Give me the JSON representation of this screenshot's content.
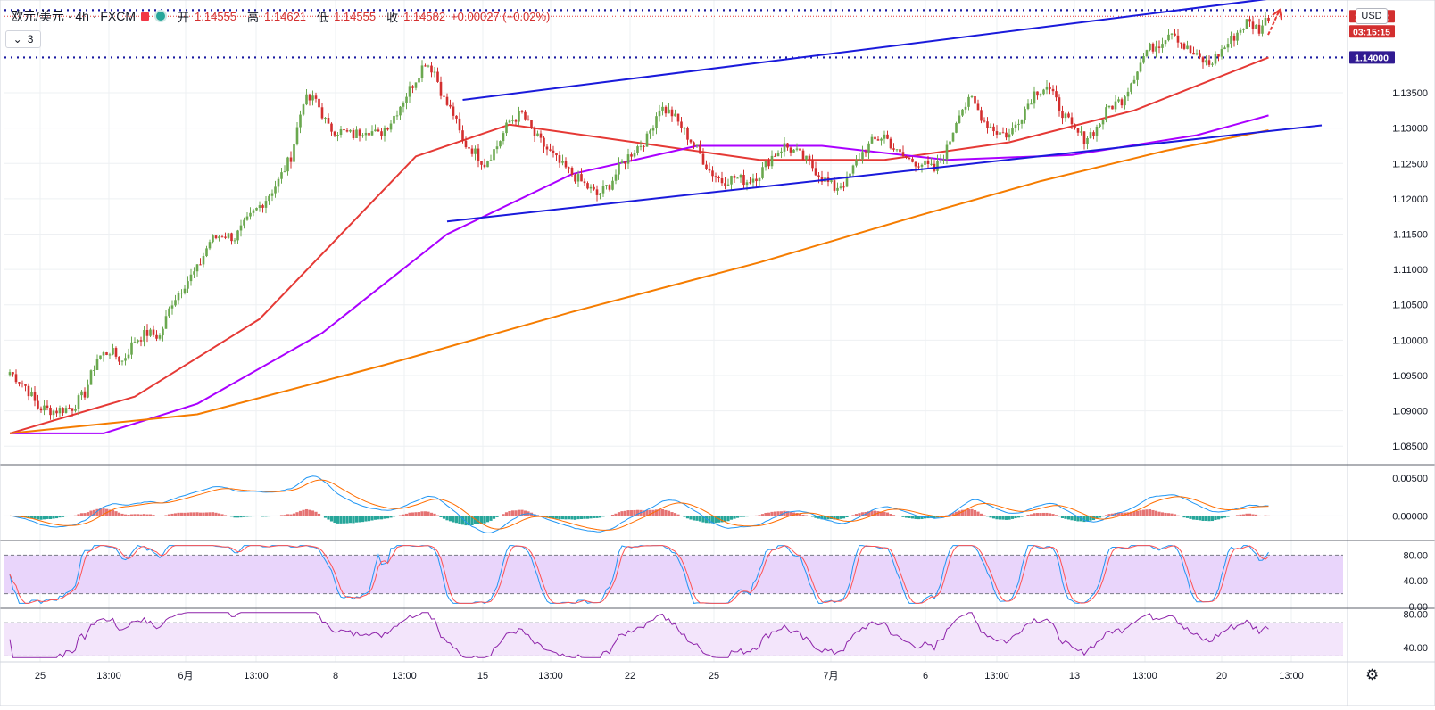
{
  "legend": {
    "symbol": "欧元/美元 · 4h · FXCM",
    "open_label": "开",
    "open": "1.14555",
    "high_label": "高",
    "high": "1.14621",
    "low_label": "低",
    "low": "1.14555",
    "close_label": "收",
    "close": "1.14582",
    "change": "+0.00027 (+0.02%)",
    "collapse_count": "3"
  },
  "currency_button": "USD",
  "price_scale": {
    "ticks": [
      "1.13500",
      "1.13000",
      "1.12500",
      "1.12000",
      "1.11500",
      "1.11000",
      "1.10500",
      "1.10000",
      "1.09500",
      "1.09000",
      "1.08500"
    ],
    "badges": [
      {
        "label": "1.14582",
        "color": "#d32f2f"
      },
      {
        "label": "03:15:15",
        "color": "#d32f2f"
      },
      {
        "label": "1.14000",
        "color": "#311b92"
      }
    ]
  },
  "macd_scale": [
    "0.00500",
    "0.00000"
  ],
  "stoch_scale": [
    "80.00",
    "40.00",
    "0.00"
  ],
  "rsi_scale": [
    "80.00",
    "40.00"
  ],
  "time_axis": [
    "25",
    "13:00",
    "6月",
    "13:00",
    "8",
    "13:00",
    "15",
    "13:00",
    "22",
    "25",
    "7月",
    "6",
    "13:00",
    "13",
    "13:00",
    "20",
    "13:00"
  ],
  "colors": {
    "up": "#6aa84f",
    "down": "#d32f2f",
    "ma_fast": "#e53935",
    "ma_mid": "#aa00ff",
    "ma_slow": "#f57c00",
    "trend": "#1a1adb",
    "level": "#1a1aa0"
  },
  "chart_data": {
    "type": "candlestick",
    "symbol": "欧元/美元",
    "interval": "4h",
    "ylim": [
      1.0825,
      1.1475
    ],
    "key_levels": [
      1.1467,
      1.14
    ],
    "current_price": 1.14582,
    "close_path": [
      [
        0,
        1.0955
      ],
      [
        5,
        1.0935
      ],
      [
        9,
        1.0905
      ],
      [
        14,
        1.09
      ],
      [
        20,
        1.0905
      ],
      [
        24,
        1.0925
      ],
      [
        28,
        1.0975
      ],
      [
        32,
        1.0985
      ],
      [
        36,
        1.097
      ],
      [
        40,
        1.1
      ],
      [
        44,
        1.101
      ],
      [
        48,
        1.1005
      ],
      [
        52,
        1.1055
      ],
      [
        56,
        1.108
      ],
      [
        60,
        1.11
      ],
      [
        64,
        1.114
      ],
      [
        68,
        1.115
      ],
      [
        72,
        1.1145
      ],
      [
        78,
        1.118
      ],
      [
        82,
        1.12
      ],
      [
        86,
        1.1225
      ],
      [
        90,
        1.126
      ],
      [
        94,
        1.134
      ],
      [
        98,
        1.134
      ],
      [
        102,
        1.13
      ],
      [
        106,
        1.1295
      ],
      [
        110,
        1.129
      ],
      [
        114,
        1.13
      ],
      [
        118,
        1.129
      ],
      [
        122,
        1.131
      ],
      [
        126,
        1.134
      ],
      [
        130,
        1.137
      ],
      [
        133,
        1.1395
      ],
      [
        136,
        1.138
      ],
      [
        139,
        1.134
      ],
      [
        142,
        1.132
      ],
      [
        145,
        1.128
      ],
      [
        148,
        1.127
      ],
      [
        152,
        1.125
      ],
      [
        156,
        1.1275
      ],
      [
        160,
        1.131
      ],
      [
        164,
        1.132
      ],
      [
        168,
        1.129
      ],
      [
        172,
        1.127
      ],
      [
        176,
        1.125
      ],
      [
        180,
        1.1235
      ],
      [
        184,
        1.122
      ],
      [
        188,
        1.1205
      ],
      [
        192,
        1.122
      ],
      [
        196,
        1.125
      ],
      [
        200,
        1.127
      ],
      [
        204,
        1.1285
      ],
      [
        208,
        1.133
      ],
      [
        212,
        1.132
      ],
      [
        216,
        1.1295
      ],
      [
        220,
        1.127
      ],
      [
        224,
        1.124
      ],
      [
        228,
        1.1225
      ],
      [
        232,
        1.123
      ],
      [
        236,
        1.1225
      ],
      [
        240,
        1.1235
      ],
      [
        244,
        1.126
      ],
      [
        248,
        1.1275
      ],
      [
        252,
        1.1265
      ],
      [
        256,
        1.125
      ],
      [
        260,
        1.123
      ],
      [
        264,
        1.1215
      ],
      [
        268,
        1.1225
      ],
      [
        272,
        1.126
      ],
      [
        276,
        1.128
      ],
      [
        280,
        1.129
      ],
      [
        284,
        1.1265
      ],
      [
        288,
        1.1255
      ],
      [
        292,
        1.125
      ],
      [
        296,
        1.124
      ],
      [
        300,
        1.127
      ],
      [
        304,
        1.1325
      ],
      [
        308,
        1.134
      ],
      [
        312,
        1.131
      ],
      [
        316,
        1.1295
      ],
      [
        320,
        1.129
      ],
      [
        324,
        1.132
      ],
      [
        328,
        1.135
      ],
      [
        332,
        1.136
      ],
      [
        336,
        1.133
      ],
      [
        340,
        1.13
      ],
      [
        344,
        1.1285
      ],
      [
        348,
        1.13
      ],
      [
        352,
        1.133
      ],
      [
        356,
        1.134
      ],
      [
        360,
        1.1375
      ],
      [
        364,
        1.141
      ],
      [
        368,
        1.142
      ],
      [
        372,
        1.144
      ],
      [
        376,
        1.1415
      ],
      [
        380,
        1.14
      ],
      [
        384,
        1.139
      ],
      [
        388,
        1.141
      ],
      [
        392,
        1.143
      ],
      [
        396,
        1.145
      ],
      [
        400,
        1.144
      ],
      [
        403,
        1.1458
      ]
    ],
    "series": [
      {
        "name": "",
        "type": "ma",
        "color": "#e53935",
        "points": [
          [
            0,
            1.0868
          ],
          [
            40,
            1.092
          ],
          [
            80,
            1.103
          ],
          [
            130,
            1.126
          ],
          [
            160,
            1.1305
          ],
          [
            200,
            1.128
          ],
          [
            240,
            1.1255
          ],
          [
            280,
            1.1255
          ],
          [
            320,
            1.128
          ],
          [
            360,
            1.1325
          ],
          [
            403,
            1.14
          ]
        ]
      },
      {
        "name": "",
        "type": "ma",
        "color": "#aa00ff",
        "points": [
          [
            0,
            1.0868
          ],
          [
            30,
            1.0868
          ],
          [
            60,
            1.091
          ],
          [
            100,
            1.101
          ],
          [
            140,
            1.115
          ],
          [
            180,
            1.1235
          ],
          [
            220,
            1.1275
          ],
          [
            260,
            1.1275
          ],
          [
            300,
            1.1255
          ],
          [
            340,
            1.1262
          ],
          [
            380,
            1.129
          ],
          [
            403,
            1.1318
          ]
        ]
      },
      {
        "name": "",
        "type": "ma",
        "color": "#f57c00",
        "points": [
          [
            0,
            1.0868
          ],
          [
            60,
            1.0895
          ],
          [
            120,
            1.0965
          ],
          [
            180,
            1.104
          ],
          [
            240,
            1.111
          ],
          [
            290,
            1.1175
          ],
          [
            330,
            1.1225
          ],
          [
            370,
            1.1268
          ],
          [
            403,
            1.1297
          ]
        ]
      }
    ],
    "trendlines": [
      {
        "from": [
          145,
          1.134
        ],
        "to": [
          405,
          1.1484
        ]
      },
      {
        "from": [
          140,
          1.1168
        ],
        "to": [
          420,
          1.1304
        ]
      }
    ],
    "indicators": {
      "macd": {
        "ylim": [
          -0.003,
          0.0065
        ],
        "ticks": [
          0.005,
          0.0
        ]
      },
      "stochastic": {
        "ylim": [
          0,
          100
        ],
        "bands": [
          20,
          80
        ],
        "ticks": [
          80,
          40,
          0
        ]
      },
      "rsi": {
        "ylim": [
          25,
          85
        ],
        "bands": [
          30,
          70
        ],
        "ticks": [
          80,
          40
        ]
      }
    }
  }
}
